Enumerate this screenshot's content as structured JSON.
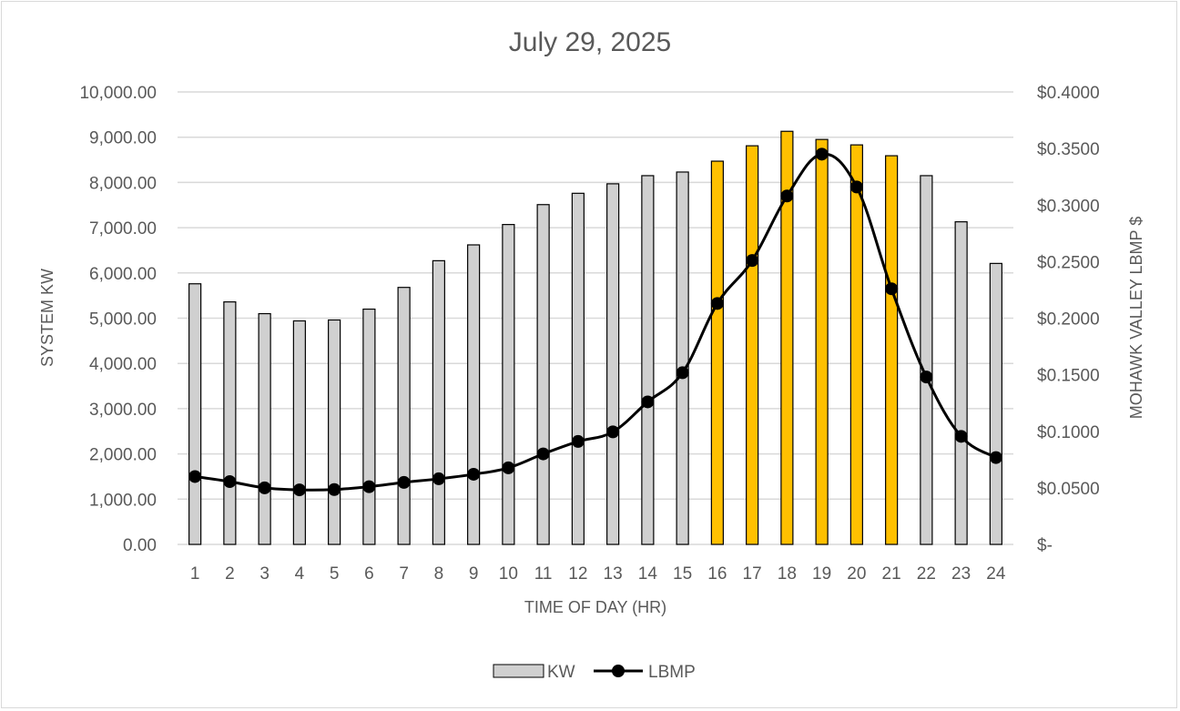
{
  "chart_data": {
    "type": "bar",
    "title": "July 29, 2025",
    "xlabel": "TIME OF DAY (HR)",
    "ylabel": "SYSTEM KW",
    "y2label": "MOHAWK VALLEY LBMP $",
    "categories": [
      "1",
      "2",
      "3",
      "4",
      "5",
      "6",
      "7",
      "8",
      "9",
      "10",
      "11",
      "12",
      "13",
      "14",
      "15",
      "16",
      "17",
      "18",
      "19",
      "20",
      "21",
      "22",
      "23",
      "24"
    ],
    "ylim": [
      0,
      10000
    ],
    "y2lim": [
      0,
      0.4
    ],
    "yticks": [
      "0.00",
      "1,000.00",
      "2,000.00",
      "3,000.00",
      "4,000.00",
      "5,000.00",
      "6,000.00",
      "7,000.00",
      "8,000.00",
      "9,000.00",
      "10,000.00"
    ],
    "y2ticks": [
      "$-",
      "$0.0500",
      "$0.1000",
      "$0.1500",
      "$0.2000",
      "$0.2500",
      "$0.3000",
      "$0.3500",
      "$0.4000"
    ],
    "grid": true,
    "legend": "bottom",
    "series": [
      {
        "name": "KW",
        "type": "bar",
        "axis": "left",
        "values": [
          5760,
          5360,
          5100,
          4940,
          4960,
          5200,
          5680,
          6270,
          6620,
          7070,
          7510,
          7760,
          7970,
          8150,
          8230,
          8470,
          8810,
          9130,
          8950,
          8830,
          8590,
          8150,
          7130,
          6210
        ],
        "color": "#d0d0d0",
        "highlight_color": "#ffc000",
        "highlighted": [
          "16",
          "17",
          "18",
          "19",
          "20",
          "21"
        ]
      },
      {
        "name": "LBMP",
        "type": "line",
        "axis": "right",
        "values": [
          0.06,
          0.0555,
          0.05,
          0.0482,
          0.0485,
          0.051,
          0.0548,
          0.058,
          0.062,
          0.0677,
          0.08,
          0.091,
          0.0995,
          0.126,
          0.1518,
          0.213,
          0.251,
          0.308,
          0.345,
          0.316,
          0.226,
          0.148,
          0.0955,
          0.0768
        ],
        "color": "#000000"
      }
    ]
  }
}
